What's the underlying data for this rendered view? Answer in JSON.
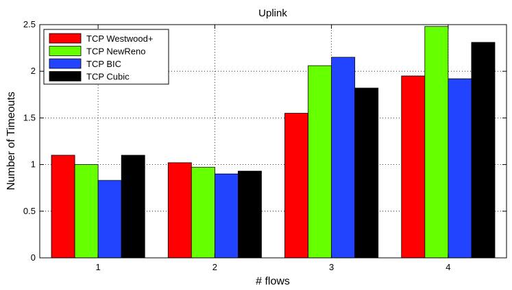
{
  "chart_data": {
    "type": "bar",
    "title": "Uplink",
    "xlabel": "# flows",
    "ylabel": "Number of Timeouts",
    "categories": [
      "1",
      "2",
      "3",
      "4"
    ],
    "ylim": [
      0,
      2.5
    ],
    "yticks": [
      "0",
      "0.5",
      "1",
      "1.5",
      "2",
      "2.5"
    ],
    "grid": true,
    "legend_position": "top-left",
    "series": [
      {
        "name": "TCP Westwood+",
        "color": "#ff0000",
        "values": [
          1.1,
          1.02,
          1.55,
          1.95
        ]
      },
      {
        "name": "TCP NewReno",
        "color": "#66ff00",
        "values": [
          1.0,
          0.97,
          2.06,
          2.48
        ]
      },
      {
        "name": "TCP BIC",
        "color": "#2244ff",
        "values": [
          0.83,
          0.9,
          2.15,
          1.92
        ]
      },
      {
        "name": "TCP Cubic",
        "color": "#000000",
        "values": [
          1.1,
          0.93,
          1.82,
          2.31
        ]
      }
    ]
  }
}
